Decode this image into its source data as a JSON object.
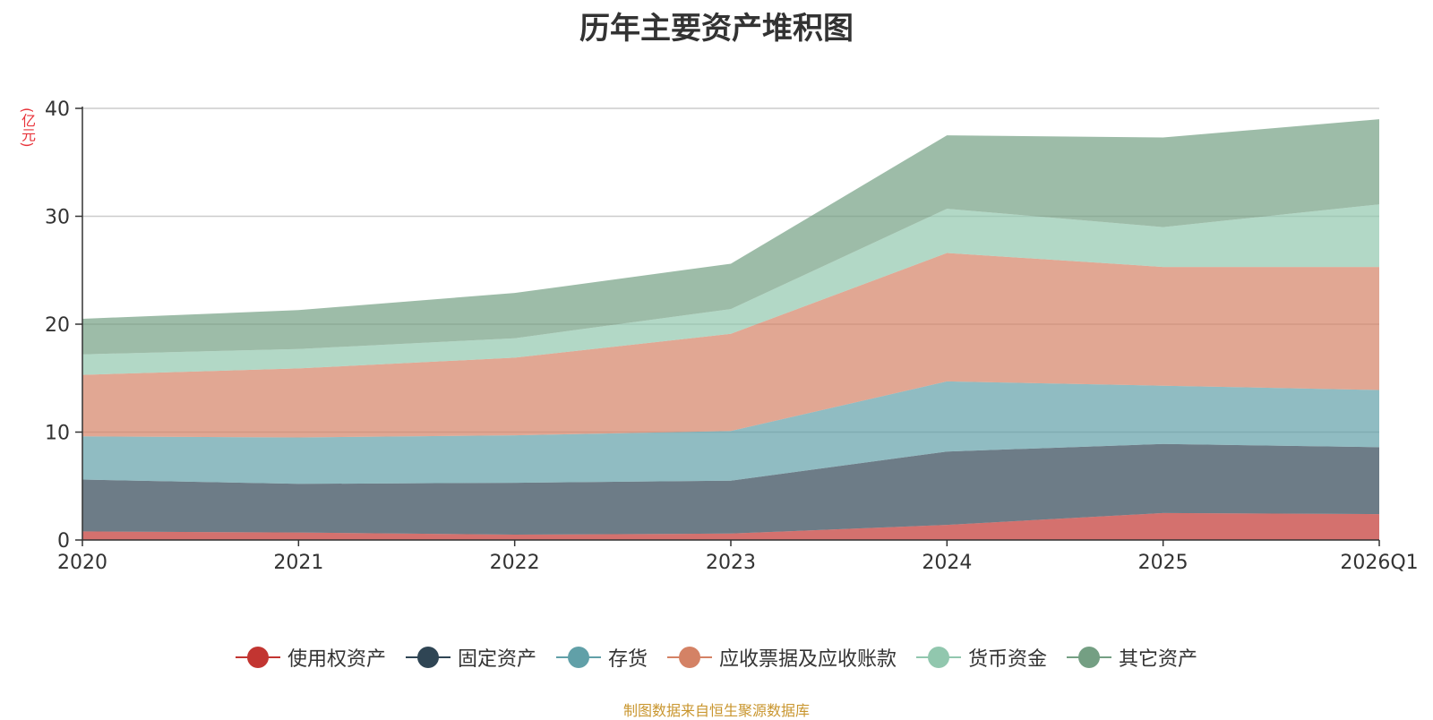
{
  "chart_data": {
    "type": "area",
    "stacked": true,
    "title": "历年主要资产堆积图",
    "ylabel": "(亿元)",
    "xlabel": "",
    "categories": [
      "2020",
      "2021",
      "2022",
      "2023",
      "2024",
      "2025",
      "2026Q1"
    ],
    "ylim": [
      0,
      40
    ],
    "yticks": [
      0,
      10,
      20,
      30,
      40
    ],
    "grid": true,
    "legend_position": "bottom",
    "series": [
      {
        "name": "使用权资产",
        "color": "#c23531",
        "values": [
          0.8,
          0.7,
          0.5,
          0.6,
          1.4,
          2.5,
          2.4
        ]
      },
      {
        "name": "固定资产",
        "color": "#2f4554",
        "values": [
          4.8,
          4.5,
          4.8,
          4.9,
          6.8,
          6.4,
          6.2
        ]
      },
      {
        "name": "存货",
        "color": "#61a0a8",
        "values": [
          4.0,
          4.3,
          4.4,
          4.6,
          6.5,
          5.4,
          5.3
        ]
      },
      {
        "name": "应收票据及应收账款",
        "color": "#d48265",
        "values": [
          5.7,
          6.4,
          7.2,
          9.0,
          11.9,
          11.0,
          11.4
        ]
      },
      {
        "name": "货币资金",
        "color": "#91c7ae",
        "values": [
          1.9,
          1.8,
          1.8,
          2.3,
          4.1,
          3.7,
          5.8
        ]
      },
      {
        "name": "其它资产",
        "color": "#749f83",
        "values": [
          3.3,
          3.6,
          4.2,
          4.2,
          6.8,
          8.3,
          7.9
        ]
      }
    ]
  },
  "footer": {
    "source": "制图数据来自恒生聚源数据库"
  }
}
